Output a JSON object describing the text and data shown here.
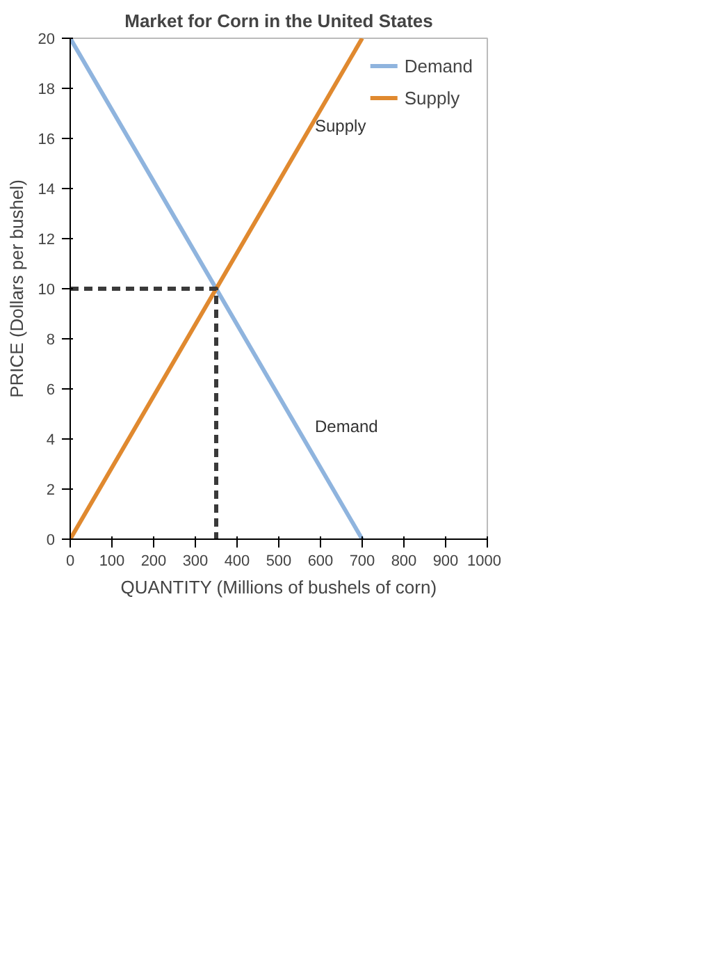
{
  "chart_data": {
    "type": "line",
    "title": "Market for Corn in the United States",
    "xlabel": "QUANTITY (Millions of bushels of corn)",
    "ylabel": "PRICE (Dollars per bushel)",
    "xlim": [
      0,
      1000
    ],
    "xticks": [
      0,
      100,
      200,
      300,
      400,
      500,
      600,
      700,
      800,
      900,
      1000
    ],
    "ylim": [
      0,
      20
    ],
    "yticks": [
      0,
      2,
      4,
      6,
      8,
      10,
      12,
      14,
      16,
      18,
      20
    ],
    "series": [
      {
        "name": "Demand",
        "color": "#8fb4de",
        "x": [
          0,
          700
        ],
        "values": [
          20,
          0
        ]
      },
      {
        "name": "Supply",
        "color": "#e0892f",
        "x": [
          0,
          700
        ],
        "values": [
          0,
          20
        ]
      },
      {
        "color": "#3a3a3a",
        "x": [
          0,
          350,
          350
        ],
        "values": [
          10,
          10,
          0
        ],
        "line_style": "dashed"
      }
    ],
    "grid": false,
    "legend": "top right",
    "marker": "none",
    "line_style": "solid"
  }
}
